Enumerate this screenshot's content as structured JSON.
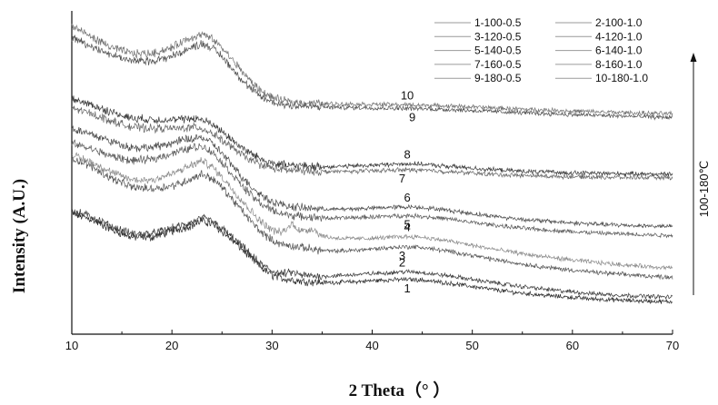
{
  "chart_data": {
    "type": "line",
    "title": "",
    "xlabel": "2 Theta（°  ）",
    "ylabel": "Intensity (A.U.)",
    "xlim": [
      10,
      70
    ],
    "ylim": [
      0,
      11
    ],
    "xticks": [
      10,
      20,
      30,
      40,
      50,
      60,
      70
    ],
    "yticks_shown": false,
    "grid": false,
    "legend_position": "top-right",
    "legend_columns": 2,
    "arrow_annotation": "100-180℃",
    "x": [
      10,
      12,
      14,
      16,
      18,
      20,
      21,
      22,
      23,
      24,
      25,
      26,
      27,
      28,
      29,
      30,
      31,
      32,
      33,
      34,
      35,
      36,
      38,
      40,
      42,
      43,
      44,
      45,
      46,
      48,
      50,
      52,
      54,
      56,
      58,
      60,
      62,
      64,
      66,
      68,
      70
    ],
    "series": [
      {
        "name": "1-100-0.5",
        "color": "#2a2a2a",
        "curve_label": "1",
        "label_x": 43.5,
        "values": [
          4.1,
          3.9,
          3.55,
          3.3,
          3.3,
          3.5,
          3.6,
          3.7,
          3.85,
          3.75,
          3.5,
          3.2,
          2.9,
          2.55,
          2.25,
          2.0,
          1.9,
          1.85,
          1.8,
          1.78,
          1.76,
          1.76,
          1.78,
          1.82,
          1.85,
          1.86,
          1.86,
          1.84,
          1.8,
          1.72,
          1.62,
          1.52,
          1.43,
          1.36,
          1.3,
          1.25,
          1.2,
          1.17,
          1.14,
          1.12,
          1.1
        ]
      },
      {
        "name": "2-100-1.0",
        "color": "#3a3a3a",
        "curve_label": "2",
        "label_x": 43.0,
        "values": [
          4.2,
          4.0,
          3.65,
          3.42,
          3.42,
          3.6,
          3.7,
          3.8,
          3.95,
          3.85,
          3.6,
          3.3,
          3.0,
          2.65,
          2.35,
          2.15,
          2.05,
          2.1,
          2.0,
          1.98,
          1.97,
          1.98,
          2.02,
          2.06,
          2.1,
          2.12,
          2.12,
          2.1,
          2.05,
          1.97,
          1.86,
          1.76,
          1.66,
          1.58,
          1.5,
          1.44,
          1.38,
          1.34,
          1.31,
          1.28,
          1.26
        ]
      },
      {
        "name": "3-120-0.5",
        "color": "#555555",
        "curve_label": "3",
        "label_x": 43.0,
        "values": [
          6.0,
          5.7,
          5.3,
          5.0,
          4.95,
          5.05,
          5.15,
          5.3,
          5.45,
          5.3,
          5.0,
          4.6,
          4.2,
          3.8,
          3.45,
          3.2,
          3.05,
          3.0,
          2.95,
          2.9,
          2.85,
          2.82,
          2.85,
          2.9,
          2.95,
          2.97,
          2.97,
          2.95,
          2.9,
          2.8,
          2.68,
          2.55,
          2.44,
          2.34,
          2.25,
          2.18,
          2.11,
          2.06,
          2.01,
          1.97,
          1.94
        ]
      },
      {
        "name": "4-120-1.0",
        "color": "#8a8a8a",
        "curve_label": "4",
        "label_x": 43.5,
        "values": [
          6.1,
          5.85,
          5.5,
          5.25,
          5.25,
          5.45,
          5.6,
          5.75,
          5.9,
          5.7,
          5.35,
          4.95,
          4.55,
          4.15,
          3.8,
          3.55,
          3.45,
          3.75,
          3.5,
          3.6,
          3.35,
          3.28,
          3.25,
          3.26,
          3.3,
          3.32,
          3.32,
          3.3,
          3.25,
          3.15,
          3.02,
          2.9,
          2.79,
          2.69,
          2.6,
          2.52,
          2.45,
          2.39,
          2.34,
          2.29,
          2.25
        ]
      },
      {
        "name": "5-140-0.5",
        "color": "#5a5a5a",
        "curve_label": "5",
        "label_x": 43.5,
        "values": [
          6.5,
          6.3,
          6.05,
          5.9,
          5.95,
          6.15,
          6.25,
          6.35,
          6.4,
          6.2,
          5.85,
          5.45,
          5.05,
          4.7,
          4.42,
          4.22,
          4.1,
          4.04,
          4.0,
          3.98,
          3.96,
          3.95,
          3.96,
          3.99,
          4.02,
          4.03,
          4.03,
          4.01,
          3.98,
          3.9,
          3.8,
          3.72,
          3.64,
          3.58,
          3.53,
          3.49,
          3.45,
          3.42,
          3.4,
          3.38,
          3.36
        ]
      },
      {
        "name": "6-140-1.0",
        "color": "#4a4a4a",
        "curve_label": "6",
        "label_x": 43.5,
        "values": [
          7.0,
          6.8,
          6.55,
          6.35,
          6.35,
          6.5,
          6.6,
          6.65,
          6.7,
          6.5,
          6.15,
          5.75,
          5.35,
          5.0,
          4.72,
          4.52,
          4.4,
          4.34,
          4.3,
          4.28,
          4.26,
          4.25,
          4.26,
          4.29,
          4.32,
          4.33,
          4.33,
          4.31,
          4.28,
          4.2,
          4.1,
          4.02,
          3.94,
          3.88,
          3.83,
          3.79,
          3.75,
          3.72,
          3.7,
          3.68,
          3.66
        ]
      },
      {
        "name": "7-160-0.5",
        "color": "#666666",
        "curve_label": "7",
        "label_x": 43.0,
        "values": [
          7.7,
          7.5,
          7.25,
          7.05,
          7.0,
          7.0,
          7.0,
          7.05,
          7.0,
          6.85,
          6.6,
          6.35,
          6.1,
          5.9,
          5.75,
          5.65,
          5.6,
          5.57,
          5.55,
          5.54,
          5.53,
          5.53,
          5.54,
          5.56,
          5.58,
          5.59,
          5.59,
          5.58,
          5.56,
          5.52,
          5.48,
          5.44,
          5.41,
          5.39,
          5.37,
          5.36,
          5.35,
          5.34,
          5.33,
          5.33,
          5.32
        ]
      },
      {
        "name": "8-160-1.0",
        "color": "#3a3a3a",
        "curve_label": "8",
        "label_x": 43.5,
        "values": [
          8.0,
          7.8,
          7.55,
          7.35,
          7.3,
          7.3,
          7.3,
          7.35,
          7.3,
          7.15,
          6.9,
          6.62,
          6.35,
          6.12,
          5.95,
          5.83,
          5.77,
          5.74,
          5.72,
          5.71,
          5.7,
          5.7,
          5.72,
          5.75,
          5.78,
          5.8,
          5.8,
          5.78,
          5.75,
          5.7,
          5.65,
          5.6,
          5.56,
          5.53,
          5.51,
          5.49,
          5.48,
          5.47,
          5.46,
          5.45,
          5.44
        ]
      },
      {
        "name": "9-180-0.5",
        "color": "#505050",
        "curve_label": "9",
        "label_x": 44.0,
        "values": [
          10.1,
          9.8,
          9.5,
          9.3,
          9.3,
          9.45,
          9.6,
          9.75,
          9.9,
          9.75,
          9.45,
          9.05,
          8.65,
          8.3,
          8.05,
          7.9,
          7.82,
          7.78,
          7.76,
          7.74,
          7.73,
          7.72,
          7.71,
          7.7,
          7.69,
          7.69,
          7.68,
          7.67,
          7.66,
          7.64,
          7.61,
          7.58,
          7.55,
          7.52,
          7.5,
          7.47,
          7.45,
          7.43,
          7.41,
          7.39,
          7.38
        ]
      },
      {
        "name": "10-180-1.0",
        "color": "#707070",
        "curve_label": "10",
        "label_x": 43.5,
        "values": [
          10.5,
          10.1,
          9.75,
          9.55,
          9.55,
          9.75,
          9.95,
          10.1,
          10.2,
          10.05,
          9.75,
          9.35,
          8.95,
          8.55,
          8.25,
          8.05,
          7.95,
          7.9,
          7.88,
          7.86,
          7.85,
          7.84,
          7.83,
          7.82,
          7.81,
          7.8,
          7.8,
          7.79,
          7.78,
          7.76,
          7.73,
          7.7,
          7.67,
          7.64,
          7.62,
          7.59,
          7.57,
          7.55,
          7.53,
          7.51,
          7.5
        ]
      }
    ]
  }
}
